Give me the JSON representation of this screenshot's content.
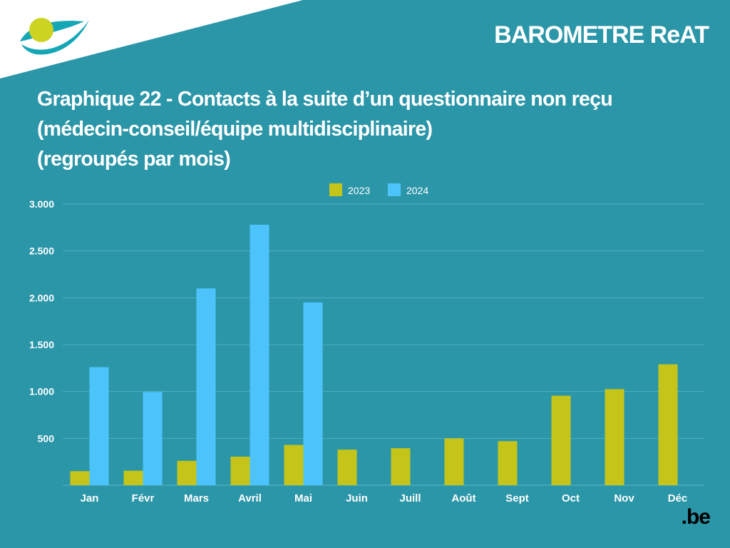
{
  "header": {
    "brand": "BAROMETRE ReAT"
  },
  "title_lines": [
    "Graphique 22  -  Contacts à la suite d’un questionnaire non reçu",
    "(médecin-conseil/équipe multidisciplinaire)",
    "(regroupés par mois)"
  ],
  "footer": {
    "logo_text": ".be"
  },
  "colors": {
    "background": "#2b96a8",
    "series_2023": "#c5c418",
    "series_2024": "#4cc4fb",
    "logo_yellow": "#cdd321",
    "logo_teal": "#16a7b6"
  },
  "chart_data": {
    "type": "bar",
    "categories": [
      "Jan",
      "Févr",
      "Mars",
      "Avril",
      "Mai",
      "Juin",
      "Juill",
      "Août",
      "Sept",
      "Oct",
      "Nov",
      "Déc"
    ],
    "series": [
      {
        "name": "2023",
        "color": "#c5c418",
        "values": [
          150,
          155,
          260,
          305,
          430,
          380,
          395,
          500,
          470,
          955,
          1025,
          1290
        ]
      },
      {
        "name": "2024",
        "color": "#4cc4fb",
        "values": [
          1260,
          995,
          2100,
          2780,
          1950,
          null,
          null,
          null,
          null,
          null,
          null,
          null
        ]
      }
    ],
    "ylim": [
      0,
      3000
    ],
    "yticks": [
      0,
      500,
      1000,
      1500,
      2000,
      2500,
      3000
    ],
    "ytick_labels": [
      "",
      "500",
      "1.000",
      "1.500",
      "2.000",
      "2.500",
      "3.000"
    ],
    "legend": {
      "placement": "top-center",
      "entries": [
        "2023",
        "2024"
      ]
    },
    "grid": true
  }
}
